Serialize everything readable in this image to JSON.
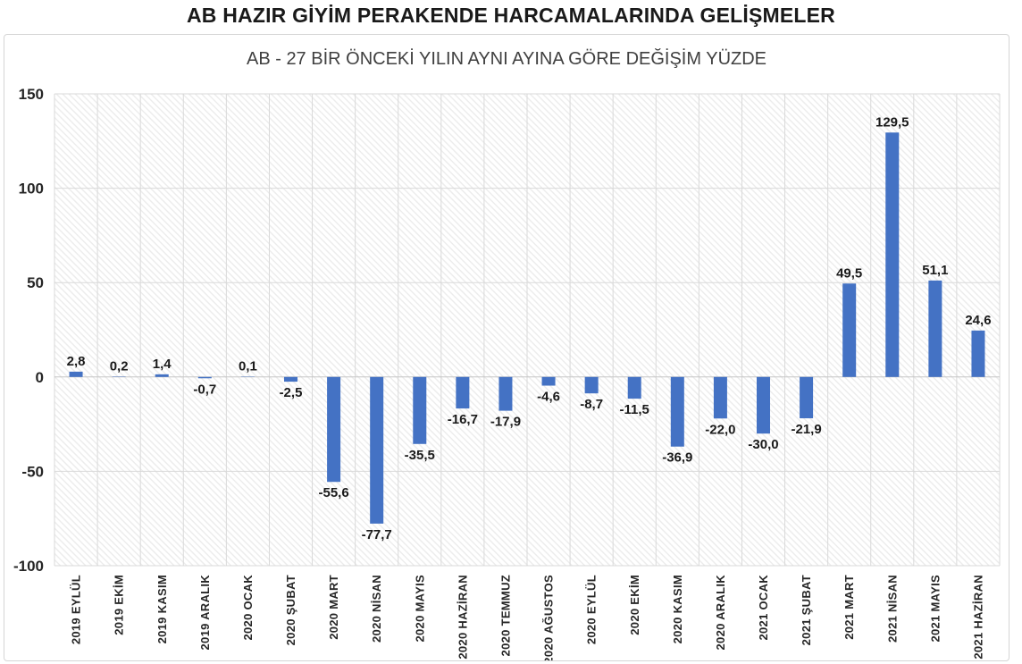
{
  "page_title": "AB HAZIR GİYİM PERAKENDE HARCAMALARINDA GELİŞMELER",
  "chart_data": {
    "type": "bar",
    "title": "AB - 27 BİR ÖNCEKİ YILIN AYNI AYINA GÖRE DEĞİŞİM YÜZDE",
    "xlabel": "",
    "ylabel": "",
    "categories": [
      "2019 EYLÜL",
      "2019 EKİM",
      "2019 KASIM",
      "2019 ARALIK",
      "2020 OCAK",
      "2020 ŞUBAT",
      "2020 MART",
      "2020 NİSAN",
      "2020 MAYIS",
      "2020 HAZİRAN",
      "2020 TEMMUZ",
      "2020 AĞUSTOS",
      "2020 EYLÜL",
      "2020 EKİM",
      "2020 KASIM",
      "2020 ARALIK",
      "2021 OCAK",
      "2021 ŞUBAT",
      "2021 MART",
      "2021 NİSAN",
      "2021 MAYIS",
      "2021 HAZİRAN"
    ],
    "values": [
      2.8,
      0.2,
      1.4,
      -0.7,
      0.1,
      -2.5,
      -55.6,
      -77.7,
      -35.5,
      -16.7,
      -17.9,
      -4.6,
      -8.7,
      -11.5,
      -36.9,
      -22.0,
      -30.0,
      -21.9,
      49.5,
      129.5,
      51.1,
      24.6
    ],
    "value_labels": [
      "2,8",
      "0,2",
      "1,4",
      "-0,7",
      "0,1",
      "-2,5",
      "-55,6",
      "-77,7",
      "-35,5",
      "-16,7",
      "-17,9",
      "-4,6",
      "-8,7",
      "-11,5",
      "-36,9",
      "-22,0",
      "-30,0",
      "-21,9",
      "49,5",
      "129,5",
      "51,1",
      "24,6"
    ],
    "ylim": [
      -100,
      150
    ],
    "yticks": [
      150,
      100,
      50,
      0,
      -50,
      -100
    ],
    "grid": true,
    "legend": false,
    "background_pattern": "diagonal-hatch",
    "colors": {
      "bar": "#4472c4",
      "gridline": "#d9d9d9",
      "zero_line": "#c6c6c6",
      "hatch_line": "#ececec",
      "plot_background": "#ffffff"
    }
  }
}
